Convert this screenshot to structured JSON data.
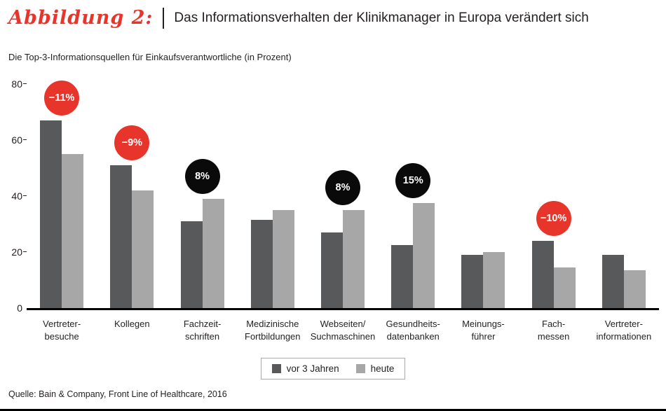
{
  "header": {
    "figure_label": "Abbildung 2:",
    "title": "Das Informationsverhalten der Klinikmanager in Europa verändert sich"
  },
  "source": "Quelle: Bain & Company, Front Line of Healthcare, 2016",
  "colors": {
    "accent_red": "#e8352c",
    "badge_black": "#0a0a0a",
    "axis_black": "#000000"
  },
  "chart_data": {
    "type": "bar",
    "subtitle": "Die Top-3-Informationsquellen für Einkaufsverantwortliche (in Prozent)",
    "ylim": [
      0,
      80
    ],
    "yticks": [
      0,
      20,
      40,
      60,
      80
    ],
    "grid": false,
    "legend_position": "bottom-center",
    "categories": [
      [
        "Vertreter-",
        "besuche"
      ],
      [
        "Kollegen"
      ],
      [
        "Fachzeit-",
        "schriften"
      ],
      [
        "Medizinische",
        "Fortbildungen"
      ],
      [
        "Webseiten/",
        "Suchmaschinen"
      ],
      [
        "Gesundheits-",
        "datenbanken"
      ],
      [
        "Meinungs-",
        "führer"
      ],
      [
        "Fach-",
        "messen"
      ],
      [
        "Vertreter-",
        "informationen"
      ]
    ],
    "series": [
      {
        "name": "vor 3 Jahren",
        "color": "#58595b",
        "values": [
          67,
          51,
          31,
          31.5,
          27,
          22.5,
          19,
          24,
          19
        ]
      },
      {
        "name": "heute",
        "color": "#a7a7a8",
        "values": [
          55,
          42,
          39,
          35,
          35,
          37.5,
          20,
          14.5,
          13.5
        ]
      }
    ],
    "badges": [
      {
        "category_index": 0,
        "label": "−11%",
        "type": "negative"
      },
      {
        "category_index": 1,
        "label": "−9%",
        "type": "negative"
      },
      {
        "category_index": 2,
        "label": "8%",
        "type": "positive"
      },
      {
        "category_index": 4,
        "label": "8%",
        "type": "positive"
      },
      {
        "category_index": 5,
        "label": "15%",
        "type": "positive"
      },
      {
        "category_index": 7,
        "label": "−10%",
        "type": "negative"
      }
    ],
    "badge_colors": {
      "negative": "#e8352c",
      "positive": "#0a0a0a"
    }
  }
}
